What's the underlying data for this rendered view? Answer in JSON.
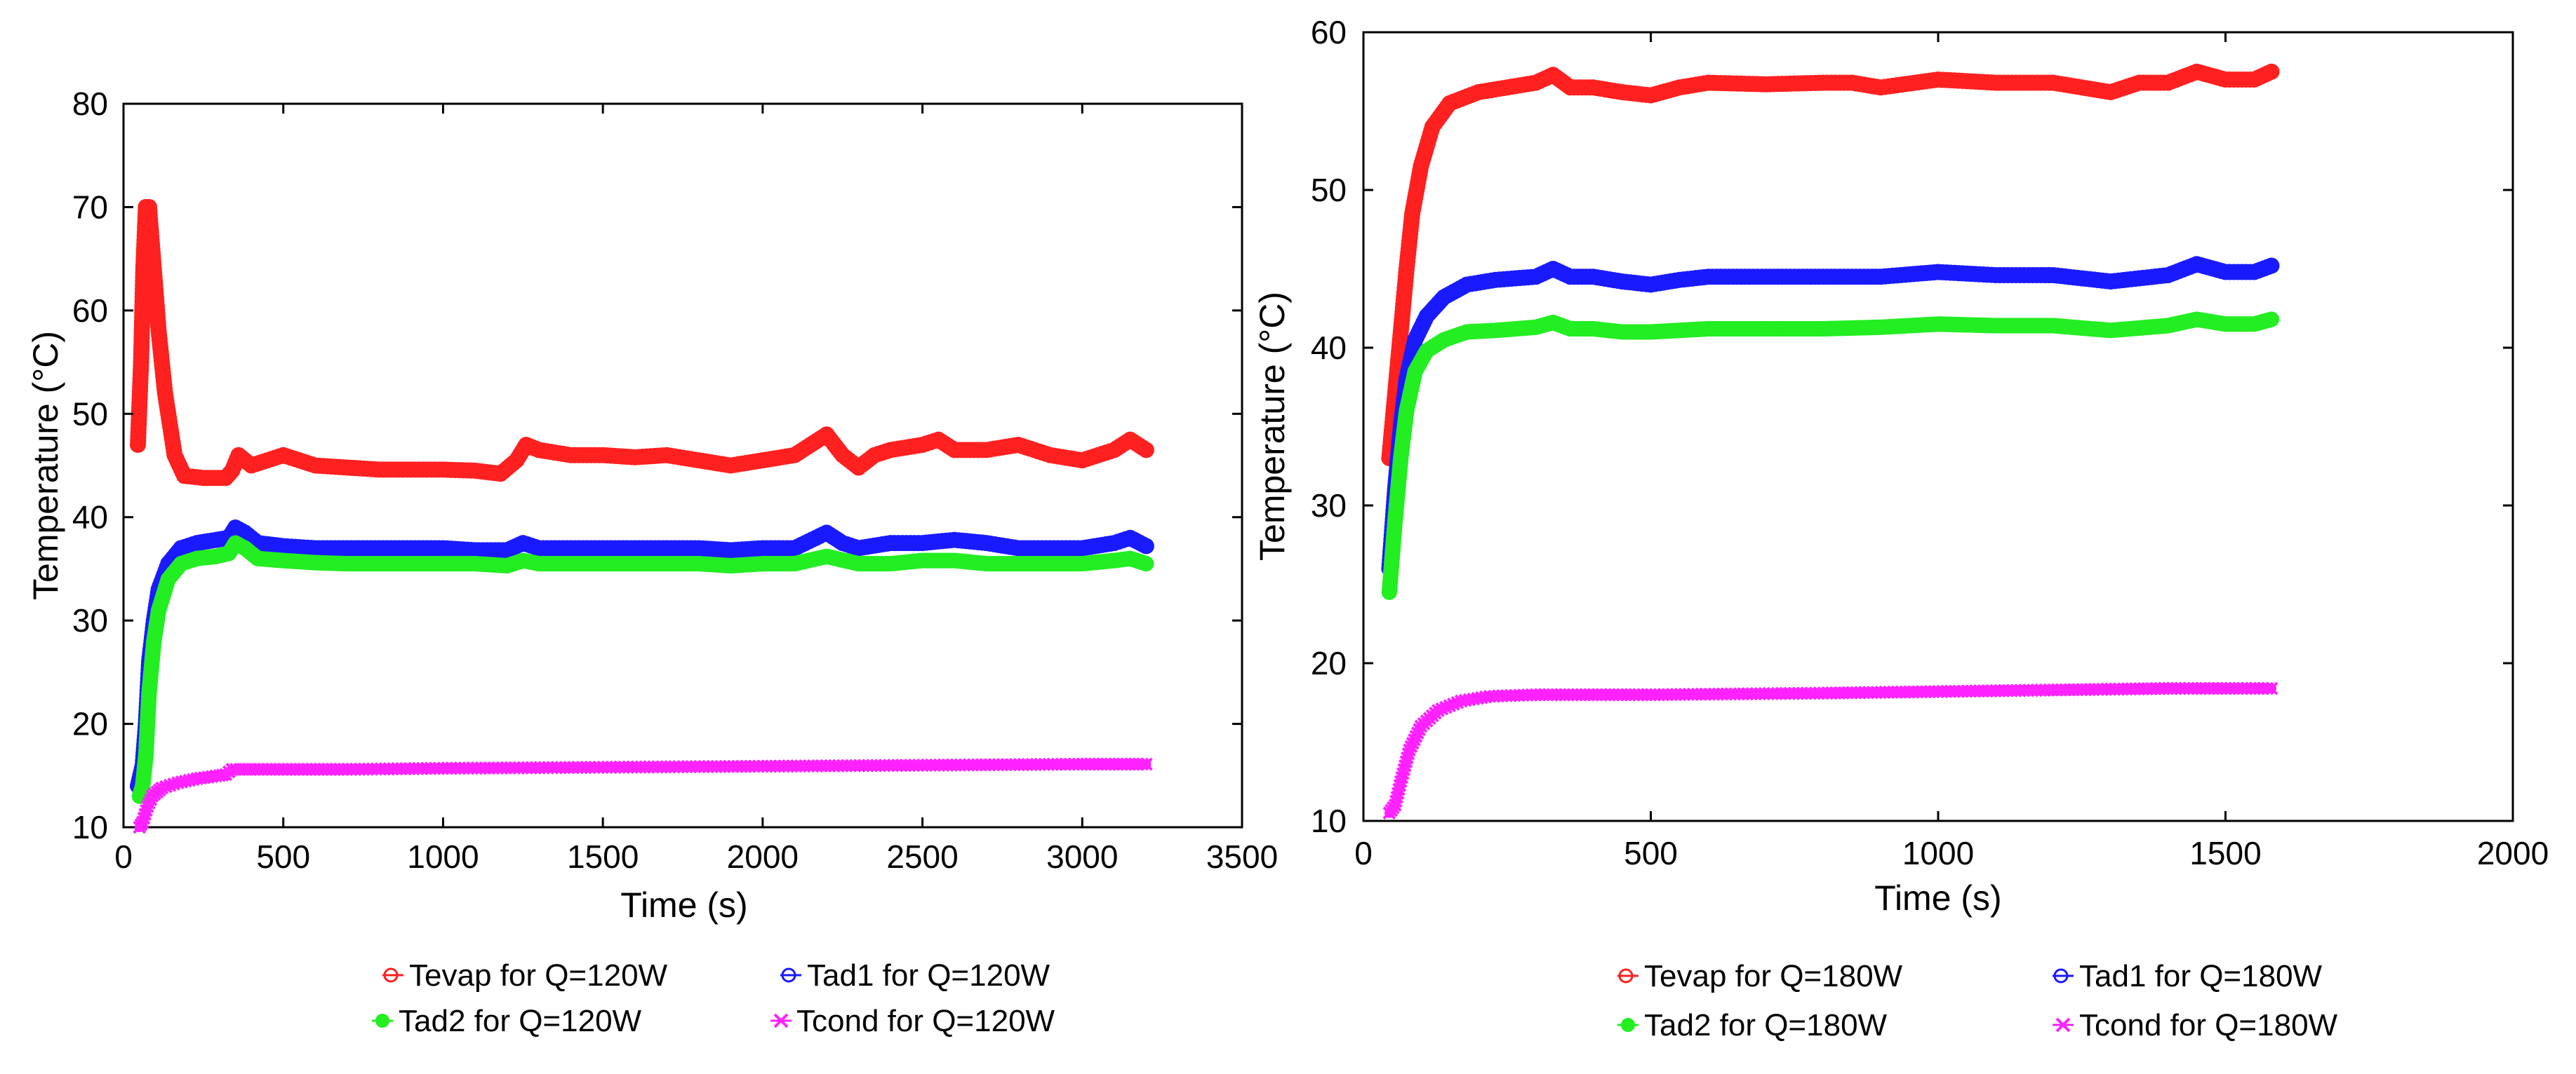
{
  "chart_data": [
    {
      "type": "scatter",
      "xlabel": "Time (s)",
      "ylabel": "Temperature  (°C)",
      "xlim": [
        0,
        3500
      ],
      "ylim": [
        10,
        80
      ],
      "xticks": [
        "0",
        "500",
        "1000",
        "1500",
        "2000",
        "2500",
        "3000",
        "3500"
      ],
      "yticks": [
        "10",
        "20",
        "30",
        "40",
        "50",
        "60",
        "70",
        "80"
      ],
      "grid": false,
      "legend_position": "bottom",
      "series": [
        {
          "name": "Tevap for Q=120W",
          "color": "#ff2020",
          "marker": "open-circle",
          "points": [
            [
              45,
              47
            ],
            [
              55,
              55
            ],
            [
              62,
              64
            ],
            [
              70,
              70
            ],
            [
              80,
              70
            ],
            [
              90,
              66
            ],
            [
              110,
              58
            ],
            [
              130,
              52
            ],
            [
              160,
              46
            ],
            [
              190,
              44
            ],
            [
              250,
              43.8
            ],
            [
              320,
              43.8
            ],
            [
              340,
              44.5
            ],
            [
              360,
              46
            ],
            [
              400,
              45
            ],
            [
              450,
              45.5
            ],
            [
              500,
              46
            ],
            [
              550,
              45.5
            ],
            [
              600,
              45
            ],
            [
              700,
              44.8
            ],
            [
              800,
              44.6
            ],
            [
              900,
              44.6
            ],
            [
              1000,
              44.6
            ],
            [
              1100,
              44.5
            ],
            [
              1180,
              44.2
            ],
            [
              1230,
              45.5
            ],
            [
              1260,
              47
            ],
            [
              1300,
              46.5
            ],
            [
              1400,
              46
            ],
            [
              1500,
              46
            ],
            [
              1600,
              45.8
            ],
            [
              1700,
              46
            ],
            [
              1800,
              45.5
            ],
            [
              1900,
              45
            ],
            [
              2000,
              45.5
            ],
            [
              2100,
              46
            ],
            [
              2150,
              47
            ],
            [
              2200,
              48
            ],
            [
              2250,
              46
            ],
            [
              2300,
              44.8
            ],
            [
              2350,
              46
            ],
            [
              2400,
              46.5
            ],
            [
              2500,
              47
            ],
            [
              2550,
              47.5
            ],
            [
              2600,
              46.5
            ],
            [
              2700,
              46.5
            ],
            [
              2800,
              47
            ],
            [
              2900,
              46
            ],
            [
              3000,
              45.5
            ],
            [
              3100,
              46.5
            ],
            [
              3150,
              47.5
            ],
            [
              3200,
              46.5
            ]
          ]
        },
        {
          "name": "Tad1 for Q=120W",
          "color": "#1a1aff",
          "marker": "open-circle",
          "points": [
            [
              45,
              14
            ],
            [
              60,
              16
            ],
            [
              70,
              20
            ],
            [
              80,
              26
            ],
            [
              95,
              30
            ],
            [
              110,
              33
            ],
            [
              140,
              35.5
            ],
            [
              180,
              37
            ],
            [
              230,
              37.5
            ],
            [
              290,
              37.8
            ],
            [
              330,
              38
            ],
            [
              350,
              39
            ],
            [
              380,
              38.5
            ],
            [
              420,
              37.5
            ],
            [
              500,
              37.2
            ],
            [
              600,
              37
            ],
            [
              700,
              37
            ],
            [
              800,
              37
            ],
            [
              900,
              37
            ],
            [
              1000,
              37
            ],
            [
              1100,
              36.8
            ],
            [
              1200,
              36.8
            ],
            [
              1250,
              37.5
            ],
            [
              1300,
              37
            ],
            [
              1400,
              37
            ],
            [
              1500,
              37
            ],
            [
              1600,
              37
            ],
            [
              1700,
              37
            ],
            [
              1800,
              37
            ],
            [
              1900,
              36.8
            ],
            [
              2000,
              37
            ],
            [
              2100,
              37
            ],
            [
              2200,
              38.5
            ],
            [
              2250,
              37.5
            ],
            [
              2300,
              37
            ],
            [
              2400,
              37.5
            ],
            [
              2500,
              37.5
            ],
            [
              2600,
              37.8
            ],
            [
              2700,
              37.5
            ],
            [
              2800,
              37
            ],
            [
              2900,
              37
            ],
            [
              3000,
              37
            ],
            [
              3100,
              37.5
            ],
            [
              3150,
              38
            ],
            [
              3200,
              37.2
            ]
          ]
        },
        {
          "name": "Tad2 for Q=120W",
          "color": "#22ee22",
          "marker": "filled-circle",
          "points": [
            [
              50,
              13
            ],
            [
              60,
              14
            ],
            [
              70,
              17
            ],
            [
              80,
              23
            ],
            [
              95,
              28
            ],
            [
              110,
              31
            ],
            [
              140,
              34
            ],
            [
              180,
              35.5
            ],
            [
              230,
              36
            ],
            [
              290,
              36.2
            ],
            [
              330,
              36.5
            ],
            [
              350,
              37.5
            ],
            [
              380,
              37
            ],
            [
              420,
              36
            ],
            [
              500,
              35.8
            ],
            [
              600,
              35.6
            ],
            [
              700,
              35.5
            ],
            [
              800,
              35.5
            ],
            [
              900,
              35.5
            ],
            [
              1000,
              35.5
            ],
            [
              1100,
              35.5
            ],
            [
              1200,
              35.3
            ],
            [
              1250,
              35.8
            ],
            [
              1300,
              35.5
            ],
            [
              1400,
              35.5
            ],
            [
              1500,
              35.5
            ],
            [
              1600,
              35.5
            ],
            [
              1700,
              35.5
            ],
            [
              1800,
              35.5
            ],
            [
              1900,
              35.3
            ],
            [
              2000,
              35.5
            ],
            [
              2100,
              35.5
            ],
            [
              2200,
              36.2
            ],
            [
              2300,
              35.5
            ],
            [
              2400,
              35.5
            ],
            [
              2500,
              35.8
            ],
            [
              2600,
              35.8
            ],
            [
              2700,
              35.5
            ],
            [
              2800,
              35.5
            ],
            [
              2900,
              35.5
            ],
            [
              3000,
              35.5
            ],
            [
              3100,
              35.8
            ],
            [
              3150,
              36
            ],
            [
              3200,
              35.5
            ]
          ]
        },
        {
          "name": "Tcond for Q=120W",
          "color": "#ff22ff",
          "marker": "x",
          "points": [
            [
              50,
              10
            ],
            [
              60,
              10.5
            ],
            [
              75,
              12
            ],
            [
              90,
              13
            ],
            [
              120,
              13.8
            ],
            [
              170,
              14.3
            ],
            [
              230,
              14.7
            ],
            [
              300,
              15
            ],
            [
              320,
              15.1
            ],
            [
              340,
              15.6
            ],
            [
              400,
              15.6
            ],
            [
              500,
              15.6
            ],
            [
              700,
              15.6
            ],
            [
              1000,
              15.7
            ],
            [
              1500,
              15.8
            ],
            [
              2000,
              15.9
            ],
            [
              2500,
              16
            ],
            [
              3000,
              16.1
            ],
            [
              3200,
              16.1
            ]
          ]
        }
      ]
    },
    {
      "type": "scatter",
      "xlabel": "Time (s)",
      "ylabel": "Temperature  (°C)",
      "xlim": [
        0,
        2000
      ],
      "ylim": [
        10,
        60
      ],
      "xticks": [
        "0",
        "500",
        "1000",
        "1500",
        "2000"
      ],
      "yticks": [
        "10",
        "20",
        "30",
        "40",
        "50",
        "60"
      ],
      "grid": false,
      "legend_position": "bottom",
      "series": [
        {
          "name": "Tevap for Q=180W",
          "color": "#ff2020",
          "marker": "open-circle",
          "points": [
            [
              45,
              33
            ],
            [
              55,
              37
            ],
            [
              65,
              41
            ],
            [
              75,
              45
            ],
            [
              85,
              48.5
            ],
            [
              100,
              51.5
            ],
            [
              120,
              54
            ],
            [
              150,
              55.5
            ],
            [
              200,
              56.2
            ],
            [
              250,
              56.5
            ],
            [
              300,
              56.8
            ],
            [
              330,
              57.3
            ],
            [
              360,
              56.5
            ],
            [
              400,
              56.5
            ],
            [
              450,
              56.2
            ],
            [
              500,
              56
            ],
            [
              550,
              56.5
            ],
            [
              600,
              56.8
            ],
            [
              700,
              56.7
            ],
            [
              800,
              56.8
            ],
            [
              850,
              56.8
            ],
            [
              900,
              56.5
            ],
            [
              1000,
              57
            ],
            [
              1100,
              56.8
            ],
            [
              1200,
              56.8
            ],
            [
              1300,
              56.2
            ],
            [
              1350,
              56.8
            ],
            [
              1400,
              56.8
            ],
            [
              1450,
              57.5
            ],
            [
              1500,
              57
            ],
            [
              1550,
              57
            ],
            [
              1580,
              57.5
            ]
          ]
        },
        {
          "name": "Tad1 for Q=180W",
          "color": "#1a1aff",
          "marker": "open-circle",
          "points": [
            [
              45,
              26
            ],
            [
              55,
              31
            ],
            [
              65,
              35
            ],
            [
              75,
              38
            ],
            [
              90,
              40.5
            ],
            [
              110,
              42
            ],
            [
              140,
              43.2
            ],
            [
              180,
              44
            ],
            [
              230,
              44.3
            ],
            [
              300,
              44.5
            ],
            [
              330,
              45
            ],
            [
              360,
              44.5
            ],
            [
              400,
              44.5
            ],
            [
              450,
              44.2
            ],
            [
              500,
              44
            ],
            [
              550,
              44.3
            ],
            [
              600,
              44.5
            ],
            [
              700,
              44.5
            ],
            [
              800,
              44.5
            ],
            [
              900,
              44.5
            ],
            [
              1000,
              44.8
            ],
            [
              1100,
              44.6
            ],
            [
              1200,
              44.6
            ],
            [
              1300,
              44.2
            ],
            [
              1400,
              44.6
            ],
            [
              1450,
              45.3
            ],
            [
              1500,
              44.8
            ],
            [
              1550,
              44.8
            ],
            [
              1580,
              45.2
            ]
          ]
        },
        {
          "name": "Tad2 for Q=180W",
          "color": "#22ee22",
          "marker": "filled-circle",
          "points": [
            [
              45,
              24.5
            ],
            [
              55,
              29
            ],
            [
              65,
              33
            ],
            [
              75,
              36
            ],
            [
              90,
              38.5
            ],
            [
              110,
              39.8
            ],
            [
              140,
              40.5
            ],
            [
              180,
              41
            ],
            [
              230,
              41.1
            ],
            [
              300,
              41.3
            ],
            [
              330,
              41.6
            ],
            [
              360,
              41.2
            ],
            [
              400,
              41.2
            ],
            [
              450,
              41
            ],
            [
              500,
              41
            ],
            [
              600,
              41.2
            ],
            [
              700,
              41.2
            ],
            [
              800,
              41.2
            ],
            [
              900,
              41.3
            ],
            [
              1000,
              41.5
            ],
            [
              1100,
              41.4
            ],
            [
              1200,
              41.4
            ],
            [
              1300,
              41.1
            ],
            [
              1400,
              41.4
            ],
            [
              1450,
              41.8
            ],
            [
              1500,
              41.5
            ],
            [
              1550,
              41.5
            ],
            [
              1580,
              41.8
            ]
          ]
        },
        {
          "name": "Tcond for Q=180W",
          "color": "#ff22ff",
          "marker": "x",
          "points": [
            [
              45,
              10.5
            ],
            [
              55,
              11
            ],
            [
              65,
              12.5
            ],
            [
              80,
              14.5
            ],
            [
              100,
              16
            ],
            [
              130,
              17
            ],
            [
              170,
              17.6
            ],
            [
              220,
              17.9
            ],
            [
              300,
              18
            ],
            [
              500,
              18
            ],
            [
              800,
              18.1
            ],
            [
              1000,
              18.2
            ],
            [
              1200,
              18.3
            ],
            [
              1400,
              18.4
            ],
            [
              1580,
              18.4
            ]
          ]
        }
      ]
    }
  ]
}
